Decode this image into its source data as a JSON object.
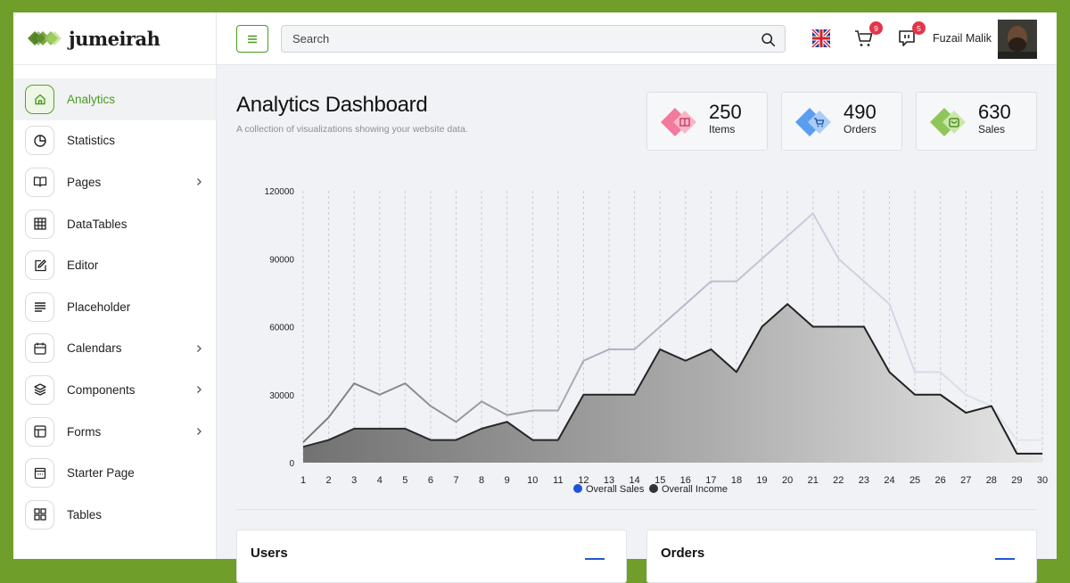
{
  "app": {
    "brand": "jumeirah"
  },
  "sidebar": {
    "items": [
      {
        "label": "Analytics",
        "icon": "home-icon",
        "active": true,
        "submenu": false
      },
      {
        "label": "Statistics",
        "icon": "pie-chart-icon",
        "submenu": false
      },
      {
        "label": "Pages",
        "icon": "book-icon",
        "submenu": true
      },
      {
        "label": "DataTables",
        "icon": "grid-icon",
        "submenu": false
      },
      {
        "label": "Editor",
        "icon": "edit-icon",
        "submenu": false
      },
      {
        "label": "Placeholder",
        "icon": "align-left-icon",
        "submenu": false
      },
      {
        "label": "Calendars",
        "icon": "calendar-icon",
        "submenu": true
      },
      {
        "label": "Components",
        "icon": "layers-icon",
        "submenu": true
      },
      {
        "label": "Forms",
        "icon": "layout-icon",
        "submenu": true
      },
      {
        "label": "Starter Page",
        "icon": "window-icon",
        "submenu": false
      },
      {
        "label": "Tables",
        "icon": "tables-icon",
        "submenu": false
      }
    ]
  },
  "header": {
    "search_placeholder": "Search",
    "cart_count": "9",
    "messages_count": "5",
    "username": "Fuzail Malik"
  },
  "main": {
    "title": "Analytics Dashboard",
    "subtitle": "A collection of visualizations showing your website data.",
    "stats": [
      {
        "value": "250",
        "label": "Items",
        "color": "#f27a9c",
        "icon": "book-icon"
      },
      {
        "value": "490",
        "label": "Orders",
        "color": "#5b9ef0",
        "icon": "cart-icon"
      },
      {
        "value": "630",
        "label": "Sales",
        "color": "#8fc65a",
        "icon": "bag-icon"
      }
    ],
    "panels": [
      {
        "title": "Users"
      },
      {
        "title": "Orders"
      }
    ]
  },
  "chart_data": {
    "type": "area",
    "x": [
      1,
      2,
      3,
      4,
      5,
      6,
      7,
      8,
      9,
      10,
      11,
      12,
      13,
      14,
      15,
      16,
      17,
      18,
      19,
      20,
      21,
      22,
      23,
      24,
      25,
      26,
      27,
      28,
      29,
      30
    ],
    "ylim": [
      0,
      120000
    ],
    "yticks": [
      0,
      30000,
      60000,
      90000,
      120000
    ],
    "series": [
      {
        "name": "Overall Sales",
        "legend_color": "#1d55d8",
        "values": [
          9000,
          20000,
          35000,
          30000,
          35000,
          25000,
          18000,
          27000,
          21000,
          23000,
          23000,
          45000,
          50000,
          50000,
          60000,
          70000,
          80000,
          80000,
          90000,
          100000,
          110000,
          90000,
          80000,
          70000,
          40000,
          40000,
          30000,
          25000,
          10000,
          10000
        ]
      },
      {
        "name": "Overall Income",
        "legend_color": "#333333",
        "values": [
          7000,
          10000,
          15000,
          15000,
          15000,
          10000,
          10000,
          15000,
          18000,
          10000,
          10000,
          30000,
          30000,
          30000,
          50000,
          45000,
          50000,
          40000,
          60000,
          70000,
          60000,
          60000,
          60000,
          40000,
          30000,
          30000,
          22000,
          25000,
          4000,
          4000
        ]
      }
    ],
    "grid": "vertical-dashed",
    "legend": "bottom-center"
  }
}
